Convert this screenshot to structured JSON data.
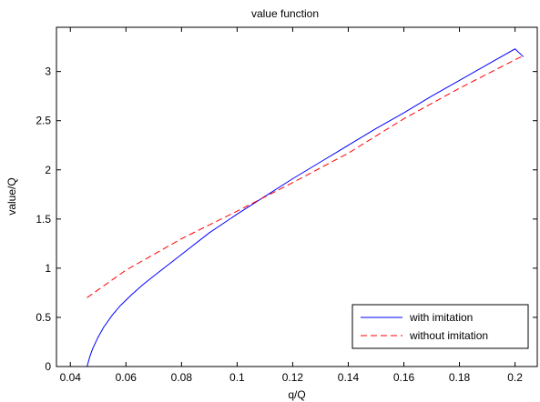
{
  "chart_data": {
    "type": "line",
    "title": "value function",
    "xlabel": "q/Q",
    "ylabel": "value/Q",
    "xlim": [
      0.035,
      0.208
    ],
    "ylim": [
      0,
      3.45
    ],
    "xticks": [
      0.04,
      0.06,
      0.08,
      0.1,
      0.12,
      0.14,
      0.16,
      0.18,
      0.2
    ],
    "xtick_labels": [
      "0.04",
      "0.06",
      "0.08",
      "0.1",
      "0.12",
      "0.14",
      "0.16",
      "0.18",
      "0.2"
    ],
    "yticks": [
      0,
      0.5,
      1,
      1.5,
      2,
      2.5,
      3
    ],
    "ytick_labels": [
      "0",
      "0.5",
      "1",
      "1.5",
      "2",
      "2.5",
      "3"
    ],
    "grid": false,
    "legend_position": "bottom-right",
    "series": [
      {
        "name": "with imitation",
        "color": "#0000ff",
        "dash": "solid",
        "x": [
          0.046,
          0.047,
          0.048,
          0.05,
          0.052,
          0.055,
          0.058,
          0.062,
          0.066,
          0.07,
          0.075,
          0.08,
          0.09,
          0.1,
          0.11,
          0.12,
          0.13,
          0.14,
          0.15,
          0.16,
          0.17,
          0.18,
          0.19,
          0.2,
          0.203
        ],
        "y": [
          0.0,
          0.1,
          0.18,
          0.3,
          0.4,
          0.52,
          0.62,
          0.73,
          0.83,
          0.92,
          1.03,
          1.14,
          1.36,
          1.55,
          1.73,
          1.91,
          2.08,
          2.25,
          2.42,
          2.58,
          2.75,
          2.91,
          3.07,
          3.23,
          3.15
        ]
      },
      {
        "name": "without imitation",
        "color": "#ff0000",
        "dash": "dashed",
        "x": [
          0.046,
          0.06,
          0.08,
          0.1,
          0.12,
          0.14,
          0.16,
          0.18,
          0.2,
          0.203
        ],
        "y": [
          0.7,
          0.98,
          1.3,
          1.58,
          1.87,
          2.17,
          2.52,
          2.83,
          3.12,
          3.16
        ]
      }
    ]
  }
}
